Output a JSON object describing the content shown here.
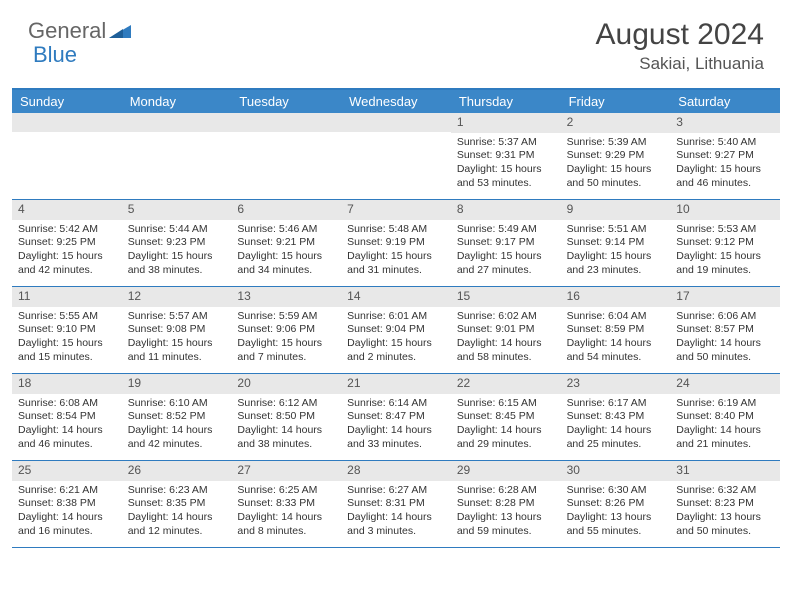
{
  "brand": {
    "part1": "General",
    "part2": "Blue",
    "text_color": "#666666",
    "accent_color": "#2f7bbf"
  },
  "title": "August 2024",
  "location": "Sakiai, Lithuania",
  "colors": {
    "header_bg": "#3b87c8",
    "header_border": "#2f7bbf",
    "daynum_bg": "#e8e8e8",
    "text": "#333333"
  },
  "day_headers": [
    "Sunday",
    "Monday",
    "Tuesday",
    "Wednesday",
    "Thursday",
    "Friday",
    "Saturday"
  ],
  "weeks": [
    [
      {
        "n": "",
        "sr": "",
        "ss": "",
        "dl": ""
      },
      {
        "n": "",
        "sr": "",
        "ss": "",
        "dl": ""
      },
      {
        "n": "",
        "sr": "",
        "ss": "",
        "dl": ""
      },
      {
        "n": "",
        "sr": "",
        "ss": "",
        "dl": ""
      },
      {
        "n": "1",
        "sr": "Sunrise: 5:37 AM",
        "ss": "Sunset: 9:31 PM",
        "dl": "Daylight: 15 hours and 53 minutes."
      },
      {
        "n": "2",
        "sr": "Sunrise: 5:39 AM",
        "ss": "Sunset: 9:29 PM",
        "dl": "Daylight: 15 hours and 50 minutes."
      },
      {
        "n": "3",
        "sr": "Sunrise: 5:40 AM",
        "ss": "Sunset: 9:27 PM",
        "dl": "Daylight: 15 hours and 46 minutes."
      }
    ],
    [
      {
        "n": "4",
        "sr": "Sunrise: 5:42 AM",
        "ss": "Sunset: 9:25 PM",
        "dl": "Daylight: 15 hours and 42 minutes."
      },
      {
        "n": "5",
        "sr": "Sunrise: 5:44 AM",
        "ss": "Sunset: 9:23 PM",
        "dl": "Daylight: 15 hours and 38 minutes."
      },
      {
        "n": "6",
        "sr": "Sunrise: 5:46 AM",
        "ss": "Sunset: 9:21 PM",
        "dl": "Daylight: 15 hours and 34 minutes."
      },
      {
        "n": "7",
        "sr": "Sunrise: 5:48 AM",
        "ss": "Sunset: 9:19 PM",
        "dl": "Daylight: 15 hours and 31 minutes."
      },
      {
        "n": "8",
        "sr": "Sunrise: 5:49 AM",
        "ss": "Sunset: 9:17 PM",
        "dl": "Daylight: 15 hours and 27 minutes."
      },
      {
        "n": "9",
        "sr": "Sunrise: 5:51 AM",
        "ss": "Sunset: 9:14 PM",
        "dl": "Daylight: 15 hours and 23 minutes."
      },
      {
        "n": "10",
        "sr": "Sunrise: 5:53 AM",
        "ss": "Sunset: 9:12 PM",
        "dl": "Daylight: 15 hours and 19 minutes."
      }
    ],
    [
      {
        "n": "11",
        "sr": "Sunrise: 5:55 AM",
        "ss": "Sunset: 9:10 PM",
        "dl": "Daylight: 15 hours and 15 minutes."
      },
      {
        "n": "12",
        "sr": "Sunrise: 5:57 AM",
        "ss": "Sunset: 9:08 PM",
        "dl": "Daylight: 15 hours and 11 minutes."
      },
      {
        "n": "13",
        "sr": "Sunrise: 5:59 AM",
        "ss": "Sunset: 9:06 PM",
        "dl": "Daylight: 15 hours and 7 minutes."
      },
      {
        "n": "14",
        "sr": "Sunrise: 6:01 AM",
        "ss": "Sunset: 9:04 PM",
        "dl": "Daylight: 15 hours and 2 minutes."
      },
      {
        "n": "15",
        "sr": "Sunrise: 6:02 AM",
        "ss": "Sunset: 9:01 PM",
        "dl": "Daylight: 14 hours and 58 minutes."
      },
      {
        "n": "16",
        "sr": "Sunrise: 6:04 AM",
        "ss": "Sunset: 8:59 PM",
        "dl": "Daylight: 14 hours and 54 minutes."
      },
      {
        "n": "17",
        "sr": "Sunrise: 6:06 AM",
        "ss": "Sunset: 8:57 PM",
        "dl": "Daylight: 14 hours and 50 minutes."
      }
    ],
    [
      {
        "n": "18",
        "sr": "Sunrise: 6:08 AM",
        "ss": "Sunset: 8:54 PM",
        "dl": "Daylight: 14 hours and 46 minutes."
      },
      {
        "n": "19",
        "sr": "Sunrise: 6:10 AM",
        "ss": "Sunset: 8:52 PM",
        "dl": "Daylight: 14 hours and 42 minutes."
      },
      {
        "n": "20",
        "sr": "Sunrise: 6:12 AM",
        "ss": "Sunset: 8:50 PM",
        "dl": "Daylight: 14 hours and 38 minutes."
      },
      {
        "n": "21",
        "sr": "Sunrise: 6:14 AM",
        "ss": "Sunset: 8:47 PM",
        "dl": "Daylight: 14 hours and 33 minutes."
      },
      {
        "n": "22",
        "sr": "Sunrise: 6:15 AM",
        "ss": "Sunset: 8:45 PM",
        "dl": "Daylight: 14 hours and 29 minutes."
      },
      {
        "n": "23",
        "sr": "Sunrise: 6:17 AM",
        "ss": "Sunset: 8:43 PM",
        "dl": "Daylight: 14 hours and 25 minutes."
      },
      {
        "n": "24",
        "sr": "Sunrise: 6:19 AM",
        "ss": "Sunset: 8:40 PM",
        "dl": "Daylight: 14 hours and 21 minutes."
      }
    ],
    [
      {
        "n": "25",
        "sr": "Sunrise: 6:21 AM",
        "ss": "Sunset: 8:38 PM",
        "dl": "Daylight: 14 hours and 16 minutes."
      },
      {
        "n": "26",
        "sr": "Sunrise: 6:23 AM",
        "ss": "Sunset: 8:35 PM",
        "dl": "Daylight: 14 hours and 12 minutes."
      },
      {
        "n": "27",
        "sr": "Sunrise: 6:25 AM",
        "ss": "Sunset: 8:33 PM",
        "dl": "Daylight: 14 hours and 8 minutes."
      },
      {
        "n": "28",
        "sr": "Sunrise: 6:27 AM",
        "ss": "Sunset: 8:31 PM",
        "dl": "Daylight: 14 hours and 3 minutes."
      },
      {
        "n": "29",
        "sr": "Sunrise: 6:28 AM",
        "ss": "Sunset: 8:28 PM",
        "dl": "Daylight: 13 hours and 59 minutes."
      },
      {
        "n": "30",
        "sr": "Sunrise: 6:30 AM",
        "ss": "Sunset: 8:26 PM",
        "dl": "Daylight: 13 hours and 55 minutes."
      },
      {
        "n": "31",
        "sr": "Sunrise: 6:32 AM",
        "ss": "Sunset: 8:23 PM",
        "dl": "Daylight: 13 hours and 50 minutes."
      }
    ]
  ]
}
